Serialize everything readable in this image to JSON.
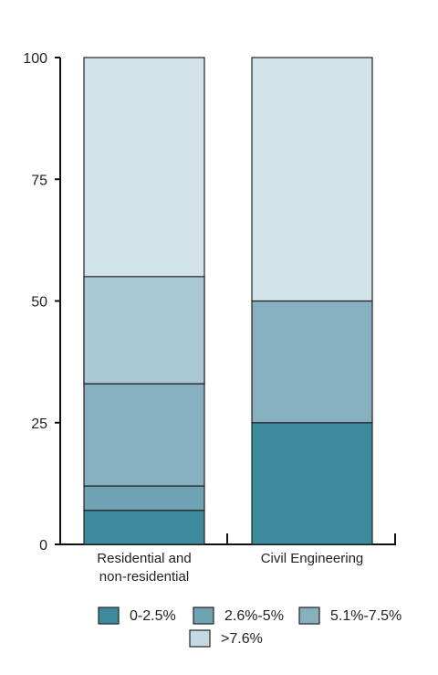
{
  "chart_data": {
    "type": "bar",
    "stacked": true,
    "categories": [
      "Residential and non-residential",
      "Civil Engineering"
    ],
    "category_label_lines": [
      [
        "Residential and",
        "non-residential"
      ],
      [
        "Civil Engineering"
      ]
    ],
    "series": [
      {
        "name": "0-2.5%",
        "color": "#3d8a9c",
        "values": [
          7,
          25
        ]
      },
      {
        "name": "2.6%-5%",
        "color": "#6fa3b4",
        "values": [
          5,
          0
        ]
      },
      {
        "name": "5.1%-7.5%",
        "color": "#86b0c0",
        "values": [
          21,
          25
        ]
      },
      {
        "name": ">7.6%",
        "color": "#d3e3ea",
        "values": [
          67,
          50
        ]
      }
    ],
    "extra_segments": [
      {
        "category_index": 0,
        "bottom": 33,
        "top": 55,
        "color": "#a9c8d4"
      }
    ],
    "ylim": [
      0,
      100
    ],
    "yticks": [
      0,
      25,
      50,
      75,
      100
    ],
    "legend_position": "bottom",
    "grid": false
  }
}
